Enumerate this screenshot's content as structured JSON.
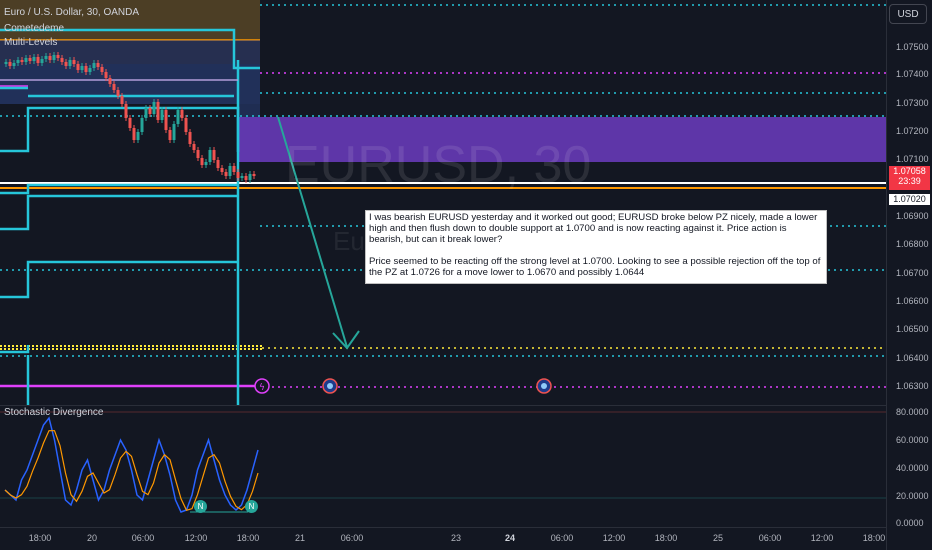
{
  "header": {
    "symbol_title": "Euro / U.S. Dollar, 30, OANDA",
    "indicators": [
      "Cometedeme",
      "Multi-Levels"
    ]
  },
  "watermark": {
    "symbol": "EURUSD, 30",
    "name": "Euro"
  },
  "currency_button": "USD",
  "price_axis": [
    "1.07500",
    "1.07400",
    "1.07300",
    "1.07200",
    "1.07100",
    "1.06900",
    "1.06800",
    "1.06700",
    "1.06600",
    "1.06500",
    "1.06400",
    "1.06300"
  ],
  "current_price": {
    "price": "1.07058",
    "countdown": "23:39",
    "color": "#f23645"
  },
  "level_tag": "1.07020",
  "time_axis": [
    "18:00",
    "20",
    "06:00",
    "12:00",
    "18:00",
    "21",
    "06:00",
    "23",
    "24",
    "06:00",
    "12:00",
    "18:00",
    "25",
    "06:00",
    "12:00",
    "18:00"
  ],
  "annotation": {
    "paragraph1": "I was bearish EURUSD yesterday and it worked out good; EURUSD broke below PZ nicely, made a lower high and then flush down to double support at 1.0700 and is now reacting against it. Price action is bearish, but can it break lower?",
    "paragraph2": "Price seemed to be reacting off the strong level at 1.0700. Looking to see a possible rejection off the top of the PZ at 1.0726 for a move lower to 1.0670 and possibly 1.0644"
  },
  "oscillator": {
    "title": "Stochastic Divergence",
    "axis": [
      "80.0000",
      "60.0000",
      "40.0000",
      "20.0000",
      "0.0000"
    ],
    "div_markers": [
      "N",
      "N"
    ]
  },
  "colors": {
    "background": "#131722",
    "up_candle": "#26a69a",
    "down_candle": "#ef5350",
    "zone": "#673ab7",
    "level_cyan": "#26c6da",
    "level_magenta": "#e040fb",
    "level_yellow": "#ffeb3b",
    "level_orange": "#ff9800"
  },
  "icons": {
    "arrow": "arrow-down-right-icon",
    "event": "economic-event-icon"
  }
}
